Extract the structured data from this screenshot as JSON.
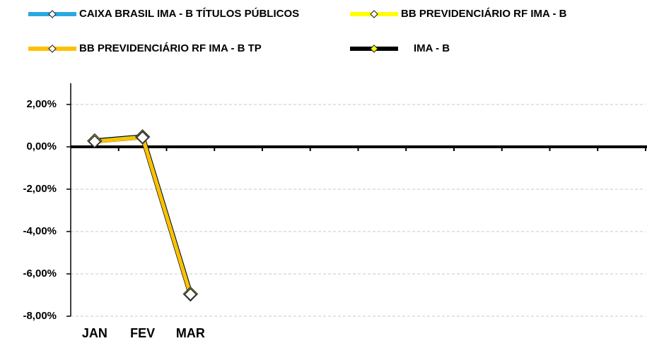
{
  "chart_data": {
    "type": "line",
    "categories": [
      "JAN",
      "FEV",
      "MAR",
      null,
      null,
      null,
      null,
      null,
      null,
      null,
      null,
      null
    ],
    "series": [
      {
        "name": "CAIXA BRASIL IMA - B TÍTULOS PÚBLICOS",
        "color": "#29a9e0",
        "marker_fill": "#ffffff",
        "values": [
          0.27,
          0.47,
          -6.95,
          null,
          null,
          null,
          null,
          null,
          null,
          null,
          null,
          null
        ]
      },
      {
        "name": "BB PREVIDENCIÁRIO RF IMA - B",
        "color": "#ffff00",
        "marker_fill": "#ffffff",
        "values": [
          0.26,
          0.46,
          -6.98,
          null,
          null,
          null,
          null,
          null,
          null,
          null,
          null,
          null
        ]
      },
      {
        "name": "BB PREVIDENCIÁRIO RF IMA - B TP",
        "color": "#ffc000",
        "marker_fill": "#ffffff",
        "values": [
          0.25,
          0.44,
          -6.97,
          null,
          null,
          null,
          null,
          null,
          null,
          null,
          null,
          null
        ]
      },
      {
        "name": "IMA - B",
        "color": "#000000",
        "marker_fill": "#ffff00",
        "values": [
          0.28,
          0.47,
          -6.95,
          null,
          null,
          null,
          null,
          null,
          null,
          null,
          null,
          null
        ]
      }
    ],
    "ylim": [
      -8,
      2
    ],
    "yticks": [
      {
        "value": -8,
        "label": "-8,00%"
      },
      {
        "value": -6,
        "label": "-6,00%"
      },
      {
        "value": -4,
        "label": "-4,00%"
      },
      {
        "value": -2,
        "label": "-2,00%"
      },
      {
        "value": 0,
        "label": "0,00%"
      },
      {
        "value": 2,
        "label": "2,00%"
      }
    ],
    "grid": true
  }
}
